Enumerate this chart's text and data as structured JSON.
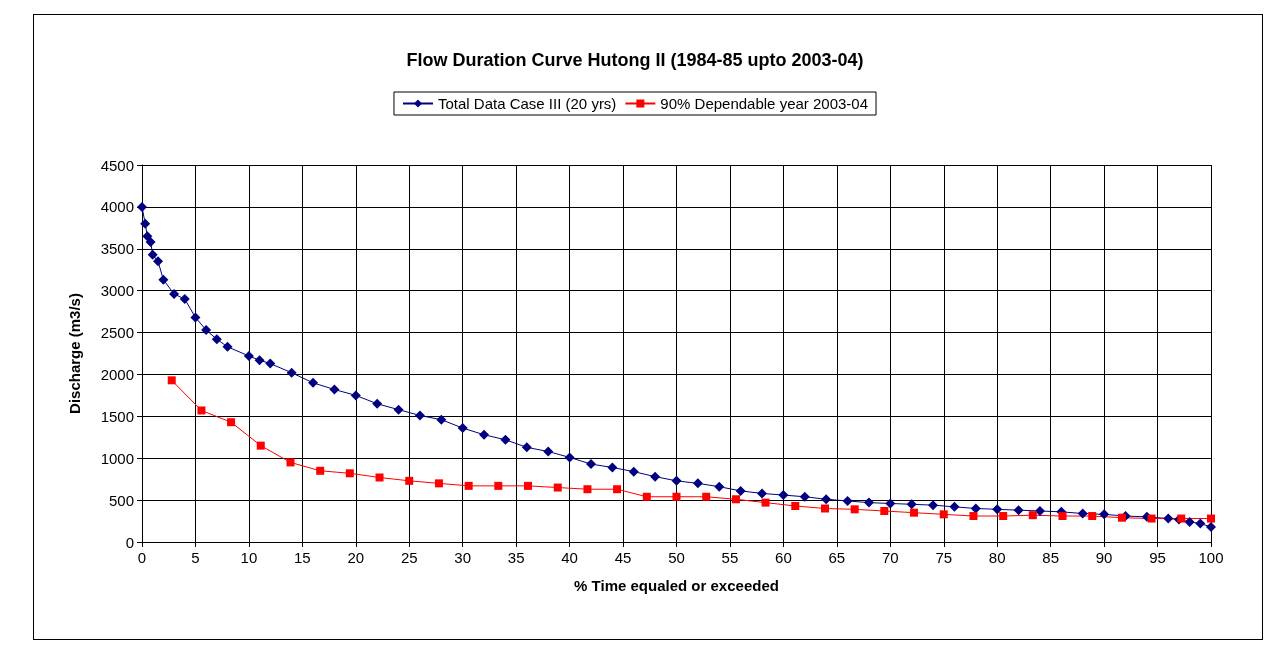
{
  "chart_data": {
    "type": "line",
    "title": "Flow Duration Curve Hutong II (1984-85 upto 2003-04)",
    "xlabel": "% Time equaled or exceeded",
    "ylabel": "Discharge (m3/s)",
    "xlim": [
      0,
      100
    ],
    "xticks": [
      0,
      5,
      10,
      15,
      20,
      25,
      30,
      35,
      40,
      45,
      50,
      55,
      60,
      65,
      70,
      75,
      80,
      85,
      90,
      95,
      100
    ],
    "ylim": [
      0,
      4500
    ],
    "yticks": [
      0,
      500,
      1000,
      1500,
      2000,
      2500,
      3000,
      3500,
      4000,
      4500
    ],
    "grid": true,
    "legend": "top",
    "line_style": "solid",
    "series": [
      {
        "name": "Total Data Case III (20 yrs)",
        "color": "#000080",
        "marker": "diamond",
        "x": [
          0,
          0.3,
          0.5,
          0.8,
          1,
          1.5,
          2,
          3,
          4,
          5,
          6,
          7,
          8,
          10,
          11,
          12,
          14,
          16,
          18,
          20,
          22,
          24,
          26,
          28,
          30,
          32,
          34,
          36,
          38,
          40,
          42,
          44,
          46,
          48,
          50,
          52,
          54,
          56,
          58,
          60,
          62,
          64,
          66,
          68,
          70,
          72,
          74,
          76,
          78,
          80,
          82,
          84,
          86,
          88,
          90,
          92,
          94,
          96,
          97,
          98,
          99,
          100
        ],
        "values": [
          4000,
          3800,
          3650,
          3580,
          3430,
          3350,
          3130,
          2960,
          2900,
          2680,
          2530,
          2420,
          2330,
          2220,
          2170,
          2130,
          2020,
          1900,
          1820,
          1750,
          1650,
          1580,
          1510,
          1460,
          1360,
          1280,
          1220,
          1130,
          1080,
          1010,
          930,
          890,
          840,
          780,
          730,
          700,
          660,
          610,
          580,
          560,
          540,
          510,
          490,
          470,
          460,
          450,
          440,
          420,
          400,
          390,
          380,
          370,
          360,
          340,
          330,
          310,
          300,
          280,
          270,
          240,
          220,
          180
        ]
      },
      {
        "name": "90% Dependable year 2003-04",
        "color": "#ff0000",
        "marker": "square",
        "x": [
          2.78,
          5.56,
          8.33,
          11.11,
          13.89,
          16.67,
          19.44,
          22.22,
          25,
          27.78,
          30.56,
          33.33,
          36.11,
          38.89,
          41.67,
          44.44,
          47.22,
          50,
          52.78,
          55.56,
          58.33,
          61.11,
          63.89,
          66.67,
          69.44,
          72.22,
          75,
          77.78,
          80.56,
          83.33,
          86.11,
          88.89,
          91.67,
          94.44,
          97.22,
          100
        ],
        "values": [
          1930,
          1570,
          1430,
          1150,
          950,
          850,
          820,
          770,
          730,
          700,
          670,
          670,
          670,
          650,
          630,
          630,
          540,
          540,
          540,
          510,
          470,
          430,
          400,
          390,
          370,
          350,
          330,
          310,
          310,
          320,
          310,
          310,
          290,
          280,
          280,
          280
        ]
      }
    ]
  }
}
